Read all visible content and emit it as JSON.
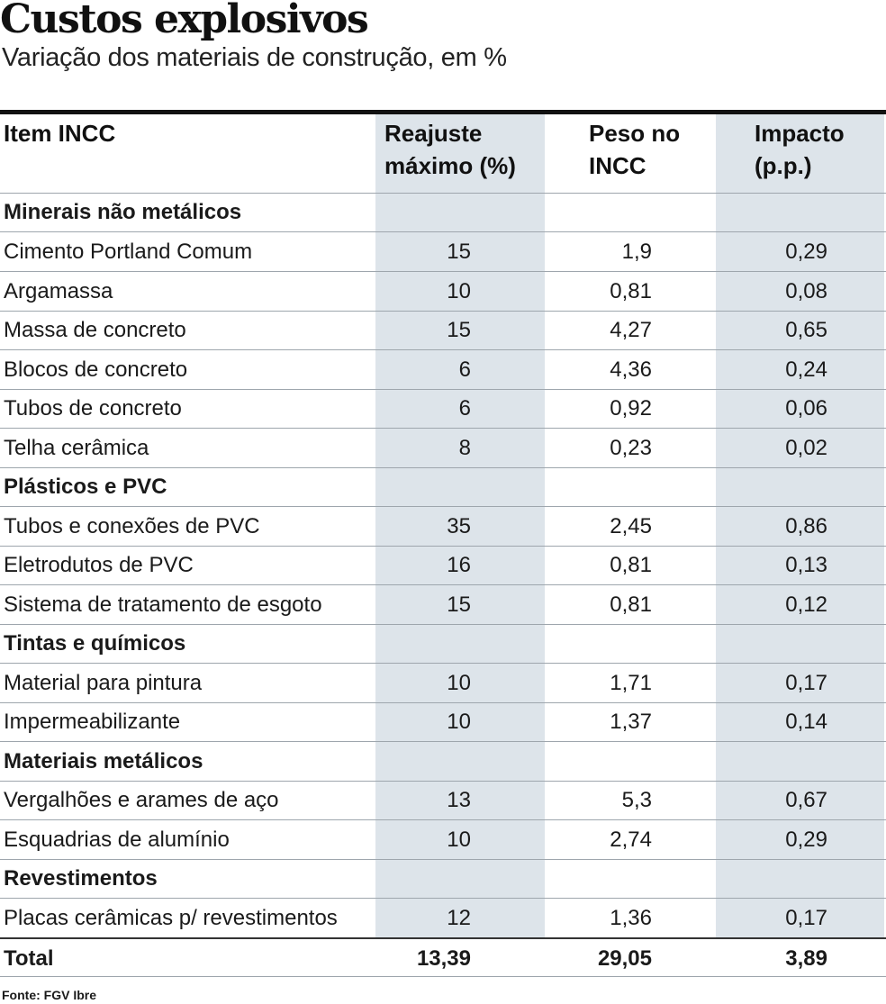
{
  "header": {
    "title": "Custos explosivos",
    "subtitle": "Variação dos materiais de construção, em %"
  },
  "table": {
    "columns": {
      "item_line1": "Item INCC",
      "reajuste_line1": "Reajuste",
      "reajuste_line2": "máximo (%)",
      "peso_line1": "Peso no",
      "peso_line2": "INCC",
      "impacto_line1": "Impacto",
      "impacto_line2": "(p.p.)"
    },
    "rows": [
      {
        "type": "section",
        "label": "Minerais não metálicos"
      },
      {
        "type": "item",
        "label": "Cimento Portland Comum",
        "reajuste": "15",
        "peso": "1,9",
        "impacto": "0,29"
      },
      {
        "type": "item",
        "label": "Argamassa",
        "reajuste": "10",
        "peso": "0,81",
        "impacto": "0,08"
      },
      {
        "type": "item",
        "label": "Massa de concreto",
        "reajuste": "15",
        "peso": "4,27",
        "impacto": "0,65"
      },
      {
        "type": "item",
        "label": "Blocos de concreto",
        "reajuste": "6",
        "peso": "4,36",
        "impacto": "0,24"
      },
      {
        "type": "item",
        "label": "Tubos de concreto",
        "reajuste": "6",
        "peso": "0,92",
        "impacto": "0,06"
      },
      {
        "type": "item",
        "label": "Telha cerâmica",
        "reajuste": "8",
        "peso": "0,23",
        "impacto": "0,02"
      },
      {
        "type": "section",
        "label": "Plásticos e PVC"
      },
      {
        "type": "item",
        "label": "Tubos e conexões de PVC",
        "reajuste": "35",
        "peso": "2,45",
        "impacto": "0,86"
      },
      {
        "type": "item",
        "label": "Eletrodutos de PVC",
        "reajuste": "16",
        "peso": "0,81",
        "impacto": "0,13"
      },
      {
        "type": "item",
        "label": "Sistema de tratamento de esgoto",
        "reajuste": "15",
        "peso": "0,81",
        "impacto": "0,12"
      },
      {
        "type": "section",
        "label": "Tintas e químicos"
      },
      {
        "type": "item",
        "label": "Material para pintura",
        "reajuste": "10",
        "peso": "1,71",
        "impacto": "0,17"
      },
      {
        "type": "item",
        "label": "Impermeabilizante",
        "reajuste": "10",
        "peso": "1,37",
        "impacto": "0,14"
      },
      {
        "type": "section",
        "label": "Materiais metálicos"
      },
      {
        "type": "item",
        "label": "Vergalhões e arames de aço",
        "reajuste": "13",
        "peso": "5,3",
        "impacto": "0,67"
      },
      {
        "type": "item",
        "label": "Esquadrias de alumínio",
        "reajuste": "10",
        "peso": "2,74",
        "impacto": "0,29"
      },
      {
        "type": "section",
        "label": "Revestimentos"
      },
      {
        "type": "item",
        "label": "Placas cerâmicas p/ revestimentos",
        "reajuste": "12",
        "peso": "1,36",
        "impacto": "0,17"
      },
      {
        "type": "total",
        "label": "Total",
        "reajuste": "13,39",
        "peso": "29,05",
        "impacto": "3,89"
      }
    ]
  },
  "footer": {
    "source": "Fonte: FGV Ibre"
  }
}
